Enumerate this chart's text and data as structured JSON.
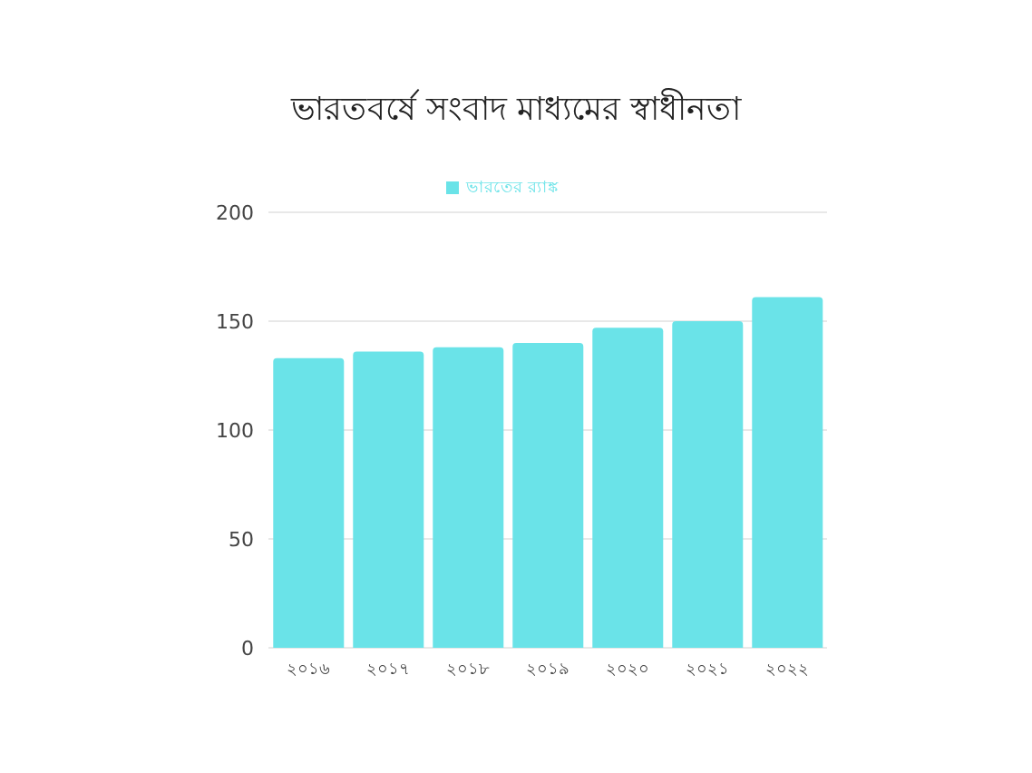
{
  "chart_data": {
    "type": "bar",
    "title": "ভারতবর্ষে সংবাদ মাধ্যমের স্বাধীনতা",
    "categories": [
      "২০১৬",
      "২০১৭",
      "২০১৮",
      "২০১৯",
      "২০২০",
      "২০২১",
      "২০২২"
    ],
    "series": [
      {
        "name": "ভারতের র‍্যাঙ্ক",
        "color": "#6ae3e8",
        "values": [
          133,
          136,
          138,
          140,
          147,
          150,
          161
        ]
      }
    ],
    "ylim": [
      0,
      200
    ],
    "yticks": [
      0,
      50,
      100,
      150,
      200
    ],
    "grid": "y",
    "legend": "top"
  }
}
